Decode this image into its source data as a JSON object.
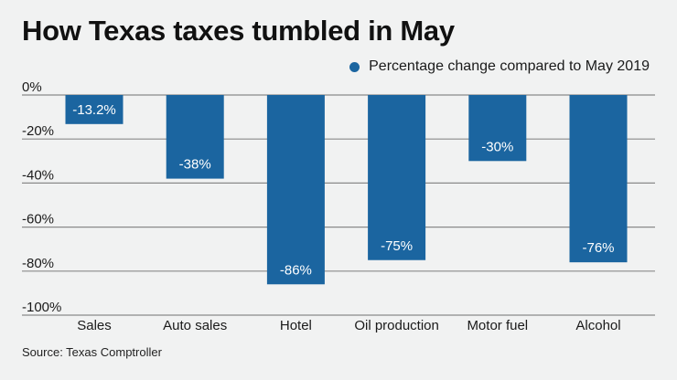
{
  "chart_data": {
    "type": "bar",
    "title": "How Texas taxes tumbled in May",
    "legend": [
      {
        "label": "Percentage change compared to May 2019",
        "color": "#1b65a0"
      }
    ],
    "legend_position": "top-right",
    "categories": [
      "Sales",
      "Auto sales",
      "Hotel",
      "Oil production",
      "Motor fuel",
      "Alcohol"
    ],
    "series": [
      {
        "name": "Percentage change compared to May 2019",
        "values": [
          -13.2,
          -38,
          -86,
          -75,
          -30,
          -76
        ],
        "color": "#1b65a0"
      }
    ],
    "data_labels": [
      "-13.2%",
      "-38%",
      "-86%",
      "-75%",
      "-30%",
      "-76%"
    ],
    "yticks": [
      0,
      -20,
      -40,
      -60,
      -80,
      -100
    ],
    "ytick_labels": [
      "0%",
      "-20%",
      "-40%",
      "-60%",
      "-80%",
      "-100%"
    ],
    "ylim": [
      -100,
      0
    ],
    "xlabel": "",
    "ylabel": "",
    "grid": true,
    "source": "Source: Texas Comptroller"
  },
  "colors": {
    "background": "#f1f2f2",
    "bar": "#1b65a0",
    "grid": "#8a8a8a",
    "label_text": "#ffffff"
  }
}
